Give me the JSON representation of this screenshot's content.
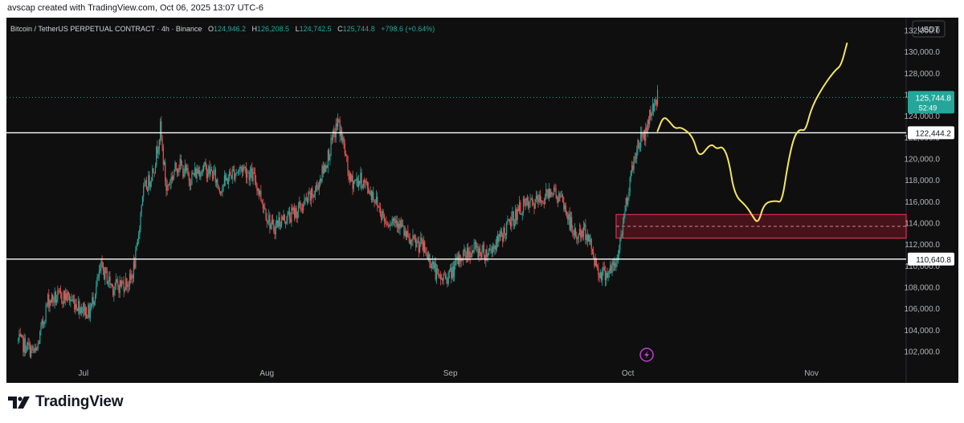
{
  "header": {
    "created_text": "avscap created with TradingView.com, Oct 06, 2025 13:07 UTC-6"
  },
  "brand": {
    "name": "TradingView",
    "icon": "tradingview-logo-icon"
  },
  "legend": {
    "symbol": "Bitcoin / TetherUS PERPETUAL CONTRACT · 4h · Binance",
    "open_label": "O",
    "open": "124,946.2",
    "high_label": "H",
    "high": "126,208.5",
    "low_label": "L",
    "low": "124,742.5",
    "close_label": "C",
    "close": "125,744.8",
    "change": "+798.6 (+0.64%)"
  },
  "currency_label": "USDT",
  "price_tag": {
    "price": "125,744.8",
    "countdown": "52:49"
  },
  "colors": {
    "background": "#0f0f0f",
    "up": "#26a69a",
    "down": "#ef5350",
    "projection": "#f5e65c",
    "level_line": "#ffffff",
    "zone_border": "#d9304f",
    "zone_fill": "#5a1620",
    "lightning_icon": "#c13fd6"
  },
  "chart_data": {
    "type": "candlestick",
    "timeframe": "4h",
    "x_tick_labels": [
      "Jul",
      "Aug",
      "Sep",
      "Oct",
      "Nov"
    ],
    "y_tick_labels": [
      "102,000.0",
      "104,000.0",
      "106,000.0",
      "108,000.0",
      "110,000.0",
      "112,000.0",
      "114,000.0",
      "116,000.0",
      "118,000.0",
      "120,000.0",
      "122,000.0",
      "124,000.0",
      "126,000.0",
      "128,000.0",
      "130,000.0",
      "132,000.0"
    ],
    "ylim": [
      100800,
      133200
    ],
    "price_path": [
      [
        "2025-06-20",
        103000
      ],
      [
        "2025-06-23",
        101800
      ],
      [
        "2025-06-25",
        106800
      ],
      [
        "2025-06-28",
        107200
      ],
      [
        "2025-07-02",
        105600
      ],
      [
        "2025-07-04",
        109800
      ],
      [
        "2025-07-06",
        108000
      ],
      [
        "2025-07-09",
        108600
      ],
      [
        "2025-07-10",
        111200
      ],
      [
        "2025-07-11",
        116800
      ],
      [
        "2025-07-12",
        117800
      ],
      [
        "2025-07-13",
        119400
      ],
      [
        "2025-07-14",
        122800
      ],
      [
        "2025-07-15",
        117200
      ],
      [
        "2025-07-17",
        119600
      ],
      [
        "2025-07-19",
        118200
      ],
      [
        "2025-07-21",
        119200
      ],
      [
        "2025-07-23",
        118600
      ],
      [
        "2025-07-24",
        117200
      ],
      [
        "2025-07-26",
        118600
      ],
      [
        "2025-07-28",
        119200
      ],
      [
        "2025-07-30",
        118100
      ],
      [
        "2025-08-01",
        114800
      ],
      [
        "2025-08-02",
        113400
      ],
      [
        "2025-08-03",
        114200
      ],
      [
        "2025-08-05",
        114700
      ],
      [
        "2025-08-07",
        115600
      ],
      [
        "2025-08-09",
        116800
      ],
      [
        "2025-08-11",
        119600
      ],
      [
        "2025-08-13",
        123500
      ],
      [
        "2025-08-14",
        121200
      ],
      [
        "2025-08-15",
        117900
      ],
      [
        "2025-08-17",
        118000
      ],
      [
        "2025-08-19",
        116600
      ],
      [
        "2025-08-21",
        114200
      ],
      [
        "2025-08-23",
        114400
      ],
      [
        "2025-08-25",
        112200
      ],
      [
        "2025-08-27",
        112000
      ],
      [
        "2025-08-29",
        110200
      ],
      [
        "2025-08-30",
        108700
      ],
      [
        "2025-09-01",
        109200
      ],
      [
        "2025-09-03",
        111000
      ],
      [
        "2025-09-05",
        111600
      ],
      [
        "2025-09-07",
        111200
      ],
      [
        "2025-09-09",
        112200
      ],
      [
        "2025-09-11",
        114000
      ],
      [
        "2025-09-13",
        115500
      ],
      [
        "2025-09-15",
        115800
      ],
      [
        "2025-09-17",
        116400
      ],
      [
        "2025-09-18",
        117300
      ],
      [
        "2025-09-20",
        115900
      ],
      [
        "2025-09-22",
        112800
      ],
      [
        "2025-09-24",
        113200
      ],
      [
        "2025-09-25",
        111300
      ],
      [
        "2025-09-26",
        109500
      ],
      [
        "2025-09-27",
        109300
      ],
      [
        "2025-09-29",
        110000
      ],
      [
        "2025-09-30",
        113500
      ],
      [
        "2025-10-01",
        117000
      ],
      [
        "2025-10-02",
        120000
      ],
      [
        "2025-10-03",
        121800
      ],
      [
        "2025-10-04",
        122500
      ],
      [
        "2025-10-05",
        124800
      ],
      [
        "2025-10-06",
        125744.8
      ]
    ],
    "support_line": 110640.8,
    "resistance_line": 122444.2,
    "demand_zone": {
      "from": 112600,
      "to": 114800,
      "mid": 113700,
      "start": "2025-09-29"
    },
    "projection": [
      [
        "2025-10-06",
        122600
      ],
      [
        "2025-10-07",
        124000
      ],
      [
        "2025-10-08",
        123500
      ],
      [
        "2025-10-09",
        122800
      ],
      [
        "2025-10-10",
        123000
      ],
      [
        "2025-10-12",
        122100
      ],
      [
        "2025-10-13",
        120000
      ],
      [
        "2025-10-15",
        121500
      ],
      [
        "2025-10-16",
        120900
      ],
      [
        "2025-10-17",
        121200
      ],
      [
        "2025-10-18",
        120000
      ],
      [
        "2025-10-19",
        116600
      ],
      [
        "2025-10-21",
        115600
      ],
      [
        "2025-10-22",
        114700
      ],
      [
        "2025-10-23",
        113900
      ],
      [
        "2025-10-24",
        115900
      ],
      [
        "2025-10-26",
        116100
      ],
      [
        "2025-10-27",
        115900
      ],
      [
        "2025-10-28",
        119500
      ],
      [
        "2025-10-29",
        122000
      ],
      [
        "2025-10-30",
        122800
      ],
      [
        "2025-10-31",
        122600
      ],
      [
        "2025-11-01",
        124800
      ],
      [
        "2025-11-03",
        126800
      ],
      [
        "2025-11-05",
        128300
      ],
      [
        "2025-11-06",
        128700
      ],
      [
        "2025-11-07",
        130800
      ]
    ]
  }
}
